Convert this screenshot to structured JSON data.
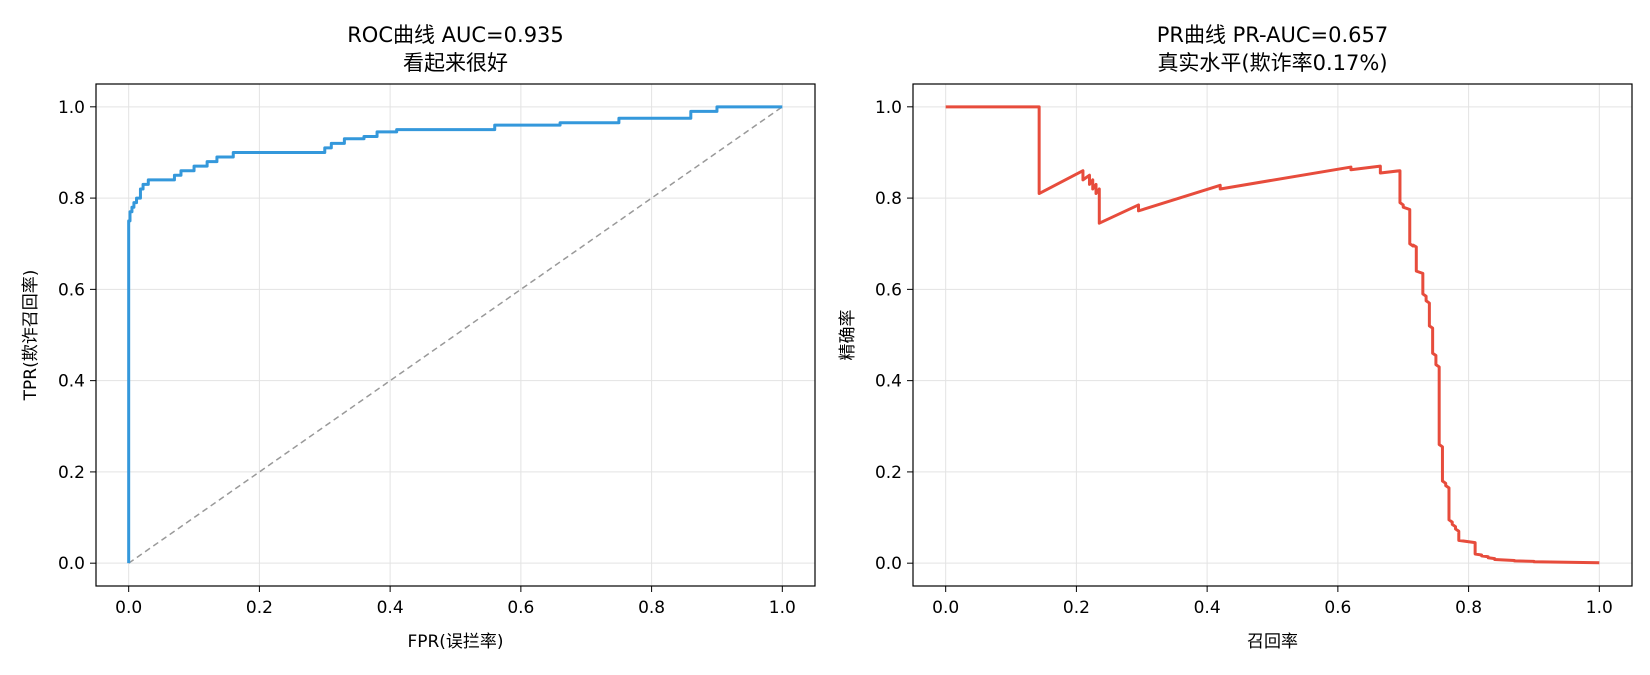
{
  "chart_data": [
    {
      "type": "line",
      "title": "ROC曲线 AUC=0.935",
      "subtitle": "看起来很好",
      "xlabel": "FPR(误拦率)",
      "ylabel": "TPR(欺诈召回率)",
      "xlim": [
        -0.05,
        1.05
      ],
      "ylim": [
        -0.05,
        1.05
      ],
      "xticks": [
        "0.0",
        "0.2",
        "0.4",
        "0.6",
        "0.8",
        "1.0"
      ],
      "yticks": [
        "0.0",
        "0.2",
        "0.4",
        "0.6",
        "0.8",
        "1.0"
      ],
      "grid": true,
      "series": [
        {
          "color": "#3498db",
          "style": "solid-step",
          "x": [
            0.0,
            0.0,
            0.002,
            0.002,
            0.005,
            0.005,
            0.008,
            0.008,
            0.012,
            0.012,
            0.018,
            0.018,
            0.022,
            0.022,
            0.03,
            0.03,
            0.07,
            0.07,
            0.08,
            0.08,
            0.1,
            0.1,
            0.12,
            0.12,
            0.135,
            0.135,
            0.16,
            0.16,
            0.3,
            0.3,
            0.31,
            0.31,
            0.33,
            0.33,
            0.36,
            0.36,
            0.38,
            0.38,
            0.41,
            0.41,
            0.56,
            0.56,
            0.66,
            0.66,
            0.75,
            0.75,
            0.86,
            0.86,
            0.9,
            0.9,
            1.0
          ],
          "y": [
            0.0,
            0.75,
            0.75,
            0.77,
            0.77,
            0.78,
            0.78,
            0.79,
            0.79,
            0.8,
            0.8,
            0.82,
            0.82,
            0.83,
            0.83,
            0.84,
            0.84,
            0.85,
            0.85,
            0.86,
            0.86,
            0.87,
            0.87,
            0.88,
            0.88,
            0.89,
            0.89,
            0.9,
            0.9,
            0.91,
            0.91,
            0.92,
            0.92,
            0.93,
            0.93,
            0.935,
            0.935,
            0.945,
            0.945,
            0.95,
            0.95,
            0.96,
            0.96,
            0.965,
            0.965,
            0.975,
            0.975,
            0.99,
            0.99,
            1.0,
            1.0
          ]
        },
        {
          "color": "#999999",
          "style": "dashed",
          "x": [
            0.0,
            1.0
          ],
          "y": [
            0.0,
            1.0
          ]
        }
      ]
    },
    {
      "type": "line",
      "title": "PR曲线 PR-AUC=0.657",
      "subtitle": "真实水平(欺诈率0.17%)",
      "xlabel": "召回率",
      "ylabel": "精确率",
      "xlim": [
        -0.05,
        1.05
      ],
      "ylim": [
        -0.05,
        1.05
      ],
      "xticks": [
        "0.0",
        "0.2",
        "0.4",
        "0.6",
        "0.8",
        "1.0"
      ],
      "yticks": [
        "0.0",
        "0.2",
        "0.4",
        "0.6",
        "0.8",
        "1.0"
      ],
      "grid": true,
      "series": [
        {
          "color": "#e74c3c",
          "style": "solid",
          "x": [
            0.0,
            0.143,
            0.143,
            0.21,
            0.21,
            0.22,
            0.22,
            0.225,
            0.225,
            0.23,
            0.23,
            0.235,
            0.235,
            0.295,
            0.295,
            0.42,
            0.42,
            0.62,
            0.62,
            0.665,
            0.665,
            0.695,
            0.695,
            0.7,
            0.7,
            0.71,
            0.71,
            0.715,
            0.715,
            0.72,
            0.72,
            0.73,
            0.73,
            0.735,
            0.735,
            0.74,
            0.74,
            0.745,
            0.745,
            0.75,
            0.75,
            0.755,
            0.755,
            0.76,
            0.76,
            0.765,
            0.765,
            0.77,
            0.77,
            0.775,
            0.775,
            0.78,
            0.78,
            0.785,
            0.785,
            0.81,
            0.81,
            0.82,
            0.82,
            0.83,
            0.83,
            0.84,
            0.84,
            0.87,
            0.87,
            0.9,
            0.9,
            0.95,
            0.95,
            1.0
          ],
          "y": [
            1.0,
            1.0,
            0.81,
            0.86,
            0.84,
            0.85,
            0.83,
            0.84,
            0.82,
            0.83,
            0.81,
            0.82,
            0.745,
            0.785,
            0.772,
            0.828,
            0.82,
            0.868,
            0.862,
            0.87,
            0.855,
            0.86,
            0.79,
            0.785,
            0.78,
            0.775,
            0.7,
            0.695,
            0.697,
            0.693,
            0.64,
            0.635,
            0.59,
            0.585,
            0.575,
            0.57,
            0.52,
            0.515,
            0.46,
            0.455,
            0.435,
            0.43,
            0.26,
            0.255,
            0.18,
            0.175,
            0.17,
            0.165,
            0.095,
            0.09,
            0.085,
            0.08,
            0.075,
            0.07,
            0.05,
            0.045,
            0.02,
            0.018,
            0.016,
            0.014,
            0.012,
            0.01,
            0.008,
            0.006,
            0.005,
            0.004,
            0.003,
            0.002,
            0.002,
            0.001
          ]
        }
      ]
    }
  ]
}
